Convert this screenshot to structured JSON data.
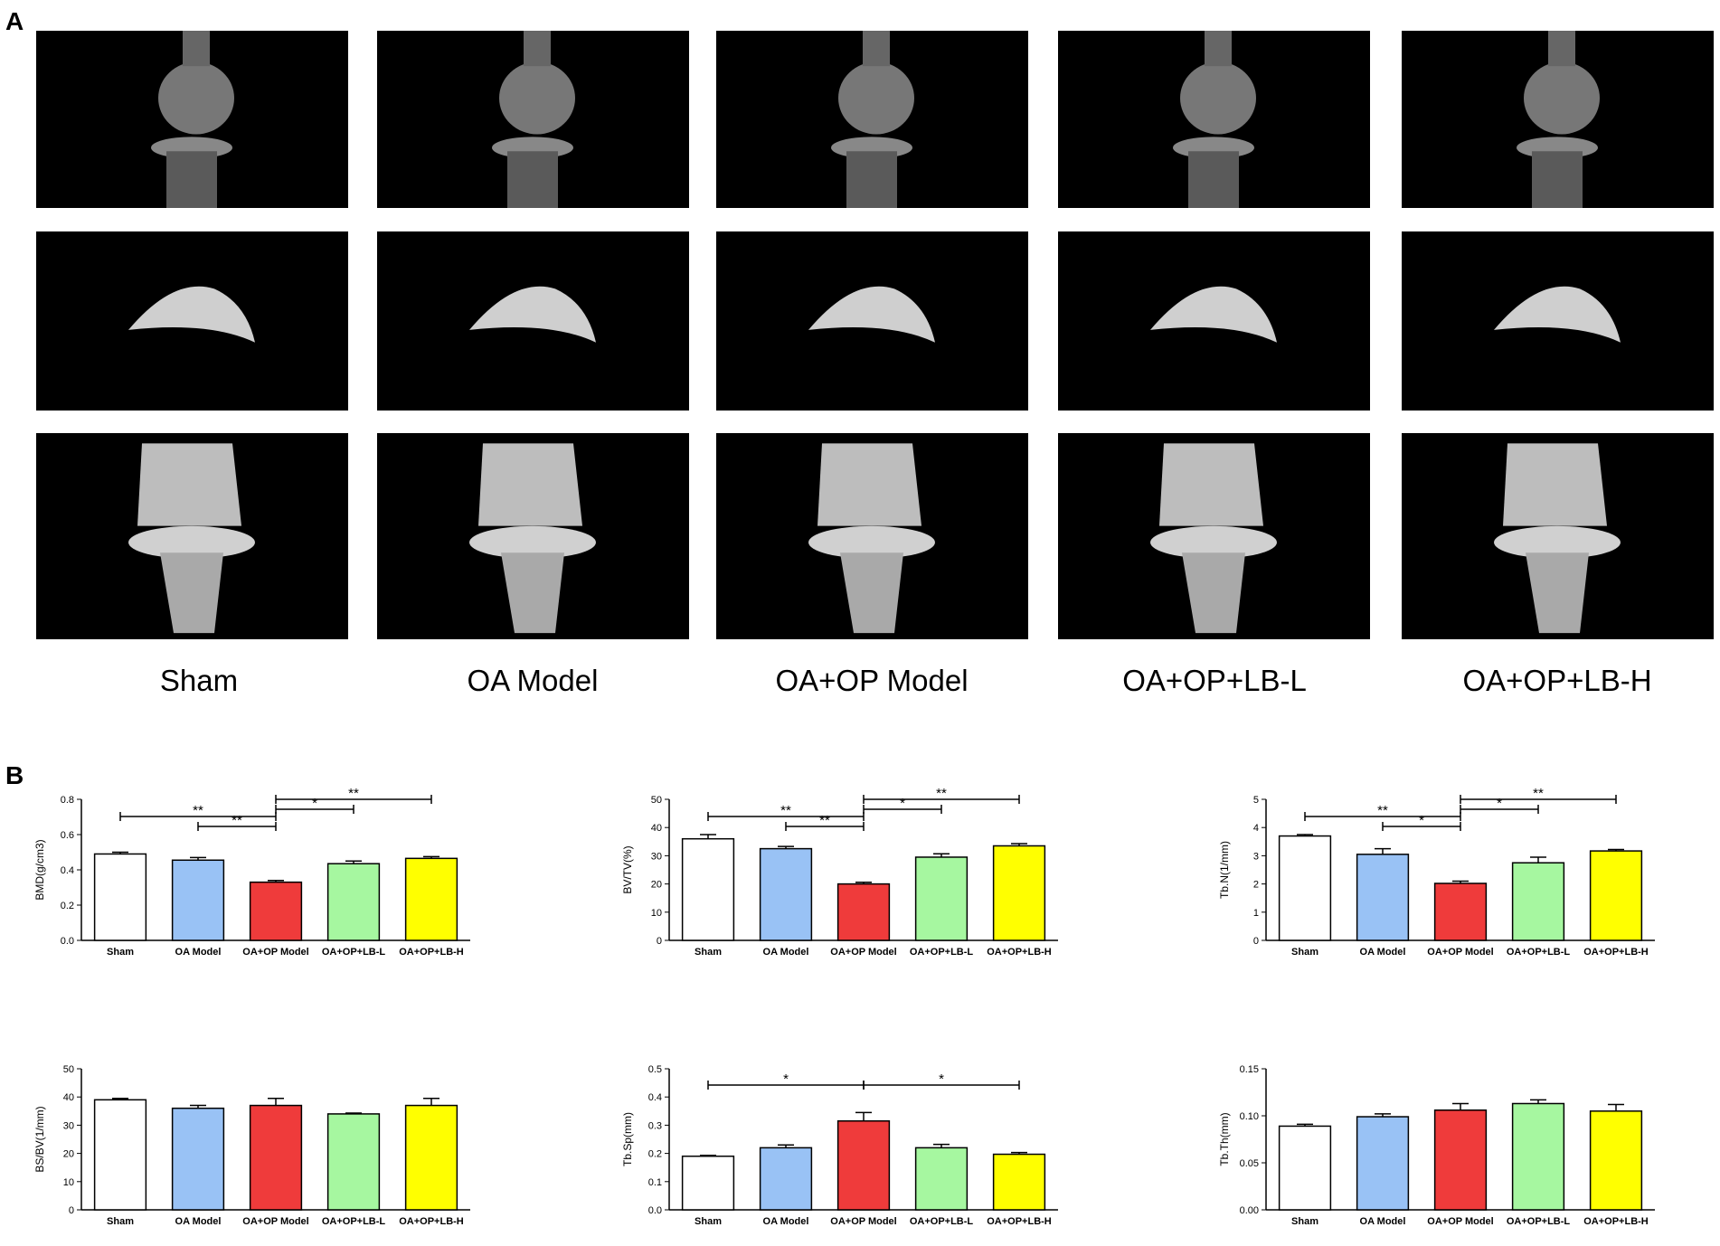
{
  "panels": {
    "a": "A",
    "b": "B"
  },
  "groups": [
    "Sham",
    "OA Model",
    "OA+OP Model",
    "OA+OP+LB-L",
    "OA+OP+LB-H"
  ],
  "colors": [
    "#ffffff",
    "#99c2f5",
    "#ef3b3b",
    "#a6f7a0",
    "#ffff00"
  ],
  "chart_data": [
    {
      "type": "bar",
      "ylabel": "BMD(g/cm3)",
      "categories": [
        "Sham",
        "OA Model",
        "OA+OP Model",
        "OA+OP+LB-L",
        "OA+OP+LB-H"
      ],
      "values": [
        0.49,
        0.455,
        0.33,
        0.435,
        0.465
      ],
      "errors": [
        0.01,
        0.015,
        0.01,
        0.015,
        0.01
      ],
      "ylim": [
        0,
        0.8
      ],
      "yticks": [
        "0.0",
        "0.2",
        "0.4",
        "0.6",
        "0.8"
      ],
      "brackets": [
        {
          "from": 2,
          "to": 4,
          "label": "**"
        },
        {
          "from": 2,
          "to": 3,
          "label": "*"
        },
        {
          "from": 0,
          "to": 2,
          "label": "**"
        },
        {
          "from": 1,
          "to": 2,
          "label": "**"
        }
      ]
    },
    {
      "type": "bar",
      "ylabel": "BV/TV(%)",
      "categories": [
        "Sham",
        "OA Model",
        "OA+OP Model",
        "OA+OP+LB-L",
        "OA+OP+LB-H"
      ],
      "values": [
        36,
        32.5,
        20,
        29.5,
        33.5
      ],
      "errors": [
        1.5,
        0.8,
        0.6,
        1.2,
        0.8
      ],
      "ylim": [
        0,
        50
      ],
      "yticks": [
        "0",
        "10",
        "20",
        "30",
        "40",
        "50"
      ],
      "brackets": [
        {
          "from": 2,
          "to": 4,
          "label": "**"
        },
        {
          "from": 2,
          "to": 3,
          "label": "*"
        },
        {
          "from": 0,
          "to": 2,
          "label": "**"
        },
        {
          "from": 1,
          "to": 2,
          "label": "**"
        }
      ]
    },
    {
      "type": "bar",
      "ylabel": "Tb.N(1/mm)",
      "categories": [
        "Sham",
        "OA Model",
        "OA+OP Model",
        "OA+OP+LB-L",
        "OA+OP+LB-H"
      ],
      "values": [
        3.7,
        3.05,
        2.02,
        2.75,
        3.17
      ],
      "errors": [
        0.05,
        0.2,
        0.08,
        0.2,
        0.05
      ],
      "ylim": [
        0,
        5
      ],
      "yticks": [
        "0",
        "1",
        "2",
        "3",
        "4",
        "5"
      ],
      "brackets": [
        {
          "from": 2,
          "to": 4,
          "label": "**"
        },
        {
          "from": 2,
          "to": 3,
          "label": "*"
        },
        {
          "from": 0,
          "to": 2,
          "label": "**"
        },
        {
          "from": 1,
          "to": 2,
          "label": "*"
        }
      ]
    },
    {
      "type": "bar",
      "ylabel": "BS/BV(1/mm)",
      "categories": [
        "Sham",
        "OA Model",
        "OA+OP Model",
        "OA+OP+LB-L",
        "OA+OP+LB-H"
      ],
      "values": [
        39,
        36,
        37,
        34,
        37
      ],
      "errors": [
        0.5,
        1.0,
        2.5,
        0.3,
        2.5
      ],
      "ylim": [
        0,
        50
      ],
      "yticks": [
        "0",
        "10",
        "20",
        "30",
        "40",
        "50"
      ],
      "brackets": []
    },
    {
      "type": "bar",
      "ylabel": "Tb.Sp(mm)",
      "categories": [
        "Sham",
        "OA Model",
        "OA+OP Model",
        "OA+OP+LB-L",
        "OA+OP+LB-H"
      ],
      "values": [
        0.19,
        0.22,
        0.315,
        0.22,
        0.197
      ],
      "errors": [
        0.003,
        0.01,
        0.03,
        0.012,
        0.006
      ],
      "ylim": [
        0,
        0.5
      ],
      "yticks": [
        "0.0",
        "0.1",
        "0.2",
        "0.3",
        "0.4",
        "0.5"
      ],
      "brackets": [
        {
          "from": 0,
          "to": 2,
          "label": "*"
        },
        {
          "from": 2,
          "to": 4,
          "label": "*"
        }
      ]
    },
    {
      "type": "bar",
      "ylabel": "Tb.Th(mm)",
      "categories": [
        "Sham",
        "OA Model",
        "OA+OP Model",
        "OA+OP+LB-L",
        "OA+OP+LB-H"
      ],
      "values": [
        0.089,
        0.099,
        0.106,
        0.113,
        0.105
      ],
      "errors": [
        0.002,
        0.003,
        0.007,
        0.004,
        0.007
      ],
      "ylim": [
        0,
        0.15
      ],
      "yticks": [
        "0.00",
        "0.05",
        "0.10",
        "0.15"
      ],
      "brackets": []
    }
  ]
}
